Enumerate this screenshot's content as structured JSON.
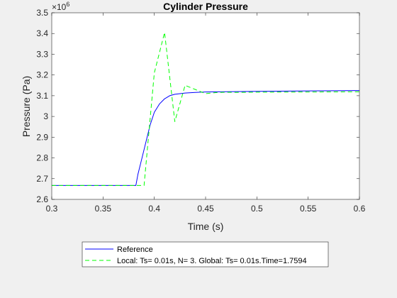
{
  "chart_data": {
    "type": "line",
    "title": "Cylinder Pressure",
    "xlabel": "Time (s)",
    "ylabel": "Pressure (Pa)",
    "y_exponent_label": "×10",
    "y_exponent": "6",
    "y_scale": 1000000,
    "xlim": [
      0.3,
      0.6
    ],
    "ylim": [
      2600000,
      3500000
    ],
    "x_ticks": [
      0.3,
      0.35,
      0.4,
      0.45,
      0.5,
      0.55,
      0.6
    ],
    "x_tick_labels": [
      "0.3",
      "0.35",
      "0.4",
      "0.45",
      "0.5",
      "0.55",
      "0.6"
    ],
    "y_ticks": [
      2600000,
      2700000,
      2800000,
      2900000,
      3000000,
      3100000,
      3200000,
      3300000,
      3400000,
      3500000
    ],
    "y_tick_labels": [
      "2.6",
      "2.7",
      "2.8",
      "2.9",
      "3",
      "3.1",
      "3.2",
      "3.3",
      "3.4",
      "3.5"
    ],
    "grid": false,
    "legend_position": "below-plot",
    "series": [
      {
        "name": "Reference",
        "color": "#0000ff",
        "style": "solid",
        "x": [
          0.3,
          0.382,
          0.384,
          0.388,
          0.392,
          0.396,
          0.4,
          0.405,
          0.41,
          0.415,
          0.42,
          0.43,
          0.44,
          0.45,
          0.5,
          0.55,
          0.6
        ],
        "y": [
          2667000,
          2667000,
          2720000,
          2800000,
          2880000,
          2960000,
          3020000,
          3060000,
          3085000,
          3100000,
          3107000,
          3113000,
          3116000,
          3118000,
          3121000,
          3123000,
          3125000
        ]
      },
      {
        "name": "Local: Ts= 0.01s, N= 3. Global: Ts= 0.01s.Time=1.7594",
        "color": "#00ff00",
        "style": "dashed",
        "x": [
          0.3,
          0.39,
          0.4,
          0.41,
          0.42,
          0.43,
          0.44,
          0.45,
          0.46,
          0.47,
          0.48,
          0.5,
          0.55,
          0.6
        ],
        "y": [
          2667000,
          2667000,
          3210000,
          3405000,
          2975000,
          3150000,
          3130000,
          3110000,
          3115000,
          3117000,
          3116000,
          3117000,
          3118000,
          3119000
        ]
      }
    ]
  }
}
